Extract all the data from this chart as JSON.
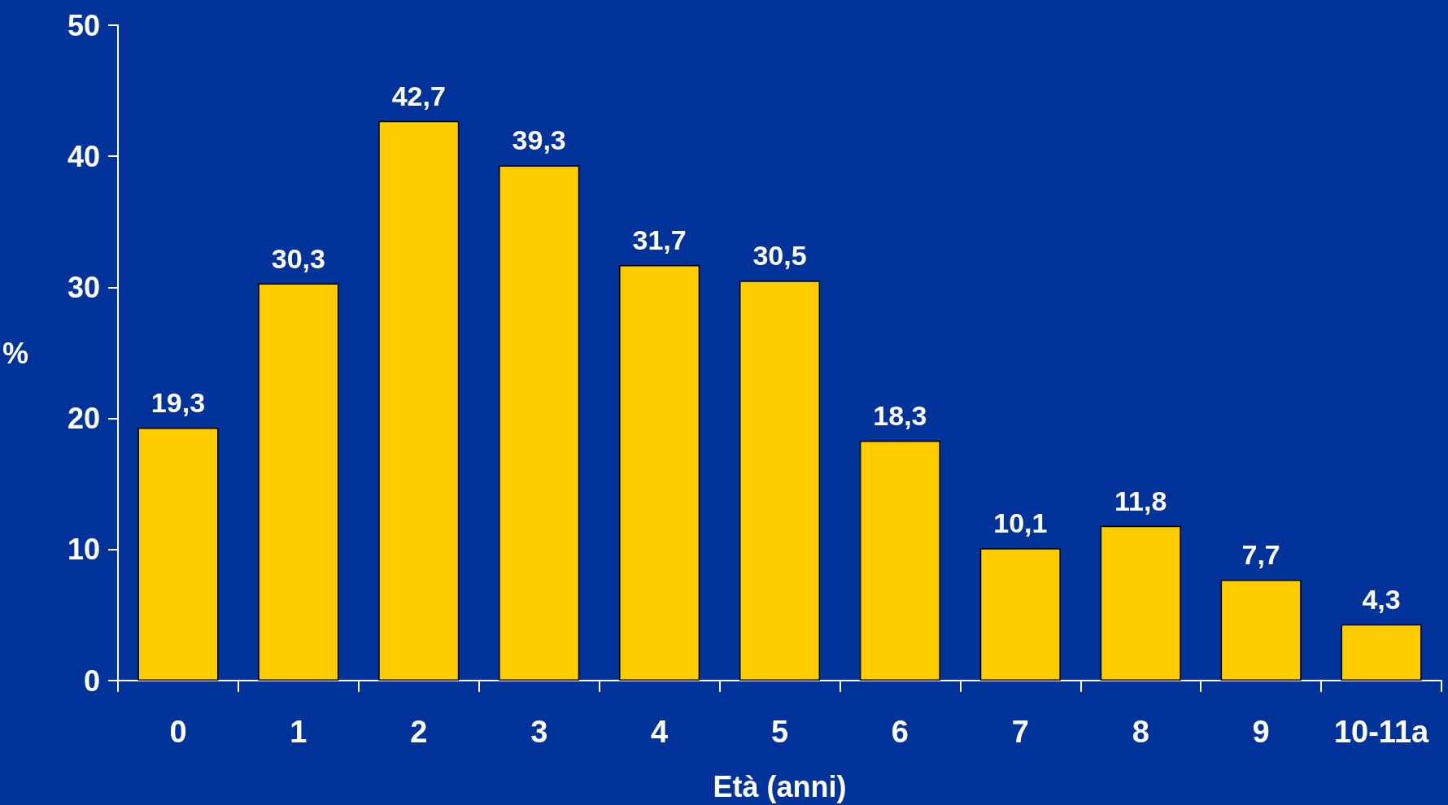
{
  "chart_data": {
    "type": "bar",
    "xlabel": "Età (anni)",
    "ylabel": "%",
    "categories": [
      "0",
      "1",
      "2",
      "3",
      "4",
      "5",
      "6",
      "7",
      "8",
      "9",
      "10-11a"
    ],
    "values": [
      19.3,
      30.3,
      42.7,
      39.3,
      31.7,
      30.5,
      18.3,
      10.1,
      11.8,
      7.7,
      4.3
    ],
    "value_labels": [
      "19,3",
      "30,3",
      "42,7",
      "39,3",
      "31,7",
      "30,5",
      "18,3",
      "10,1",
      "11,8",
      "7,7",
      "4,3"
    ],
    "color": "#ffcc00",
    "ylim": [
      0,
      50
    ],
    "yticks": [
      0,
      10,
      20,
      30,
      40,
      50
    ],
    "grid": false
  }
}
